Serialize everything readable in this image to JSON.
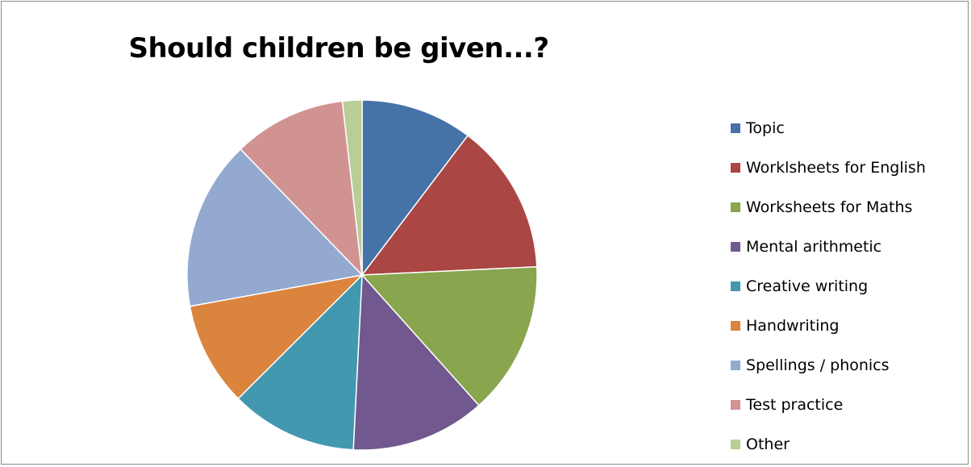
{
  "chart_data": {
    "type": "pie",
    "title": "Should children be given...?",
    "categories": [
      "Topic",
      "Worklsheets for English",
      "Worksheets for Maths",
      "Mental arithmetic",
      "Creative writing",
      "Handwriting",
      "Spellings / phonics",
      "Test practice",
      "Other"
    ],
    "values": [
      10.3,
      13.9,
      14.1,
      12.4,
      11.7,
      9.6,
      15.6,
      10.4,
      1.8
    ],
    "colors": [
      "#4572a7",
      "#aa4643",
      "#89a54e",
      "#71588f",
      "#4198af",
      "#db843d",
      "#93a9cf",
      "#d19392",
      "#b9cd96"
    ],
    "legend_position": "right"
  }
}
